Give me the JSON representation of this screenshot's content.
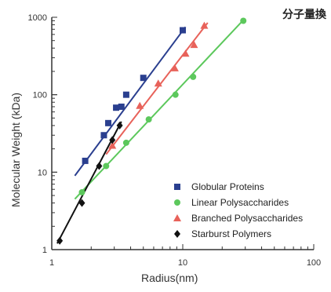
{
  "corner_title": "分子量換",
  "chart_data": {
    "type": "scatter",
    "title": "",
    "xlabel": "Radius(nm)",
    "ylabel": "Molecular Weight (kDa)",
    "xscale": "log",
    "yscale": "log",
    "xlim": [
      1,
      100
    ],
    "ylim": [
      1,
      1000
    ],
    "x_ticks": [
      "1",
      "10",
      "100"
    ],
    "y_ticks": [
      "1",
      "10",
      "100",
      "1000"
    ],
    "legend_position": "bottom-right",
    "grid": false,
    "series": [
      {
        "name": "Globular Proteins",
        "marker": "square",
        "color": "#2a3f8f",
        "x": [
          1.8,
          2.5,
          2.7,
          3.1,
          3.4,
          3.7,
          5.0,
          10.0
        ],
        "y": [
          14,
          30,
          43,
          68,
          70,
          100,
          165,
          680
        ],
        "fit": {
          "x": [
            1.5,
            10.5
          ],
          "y": [
            9,
            750
          ]
        }
      },
      {
        "name": "Linear Polysaccharides",
        "marker": "circle",
        "color": "#5cc85c",
        "x": [
          1.7,
          2.6,
          3.7,
          5.5,
          8.8,
          12.0,
          29.0
        ],
        "y": [
          5.5,
          12,
          24,
          48,
          100,
          170,
          900
        ],
        "fit": {
          "x": [
            1.5,
            29.0
          ],
          "y": [
            4.5,
            920
          ]
        }
      },
      {
        "name": "Branched Polysaccharides",
        "marker": "triangle",
        "color": "#e8625a",
        "x": [
          2.9,
          4.7,
          6.5,
          8.7,
          10.5,
          12.2,
          14.6
        ],
        "y": [
          22,
          72,
          140,
          220,
          340,
          440,
          780
        ],
        "fit": {
          "x": [
            2.6,
            15.5
          ],
          "y": [
            17,
            850
          ]
        }
      },
      {
        "name": "Starburst Polymers",
        "marker": "diamond",
        "color": "#111111",
        "x": [
          1.15,
          1.7,
          2.3,
          2.9,
          3.3
        ],
        "y": [
          1.3,
          4,
          12,
          26,
          40
        ],
        "fit": {
          "x": [
            1.1,
            3.4
          ],
          "y": [
            1.2,
            45
          ]
        }
      }
    ]
  }
}
